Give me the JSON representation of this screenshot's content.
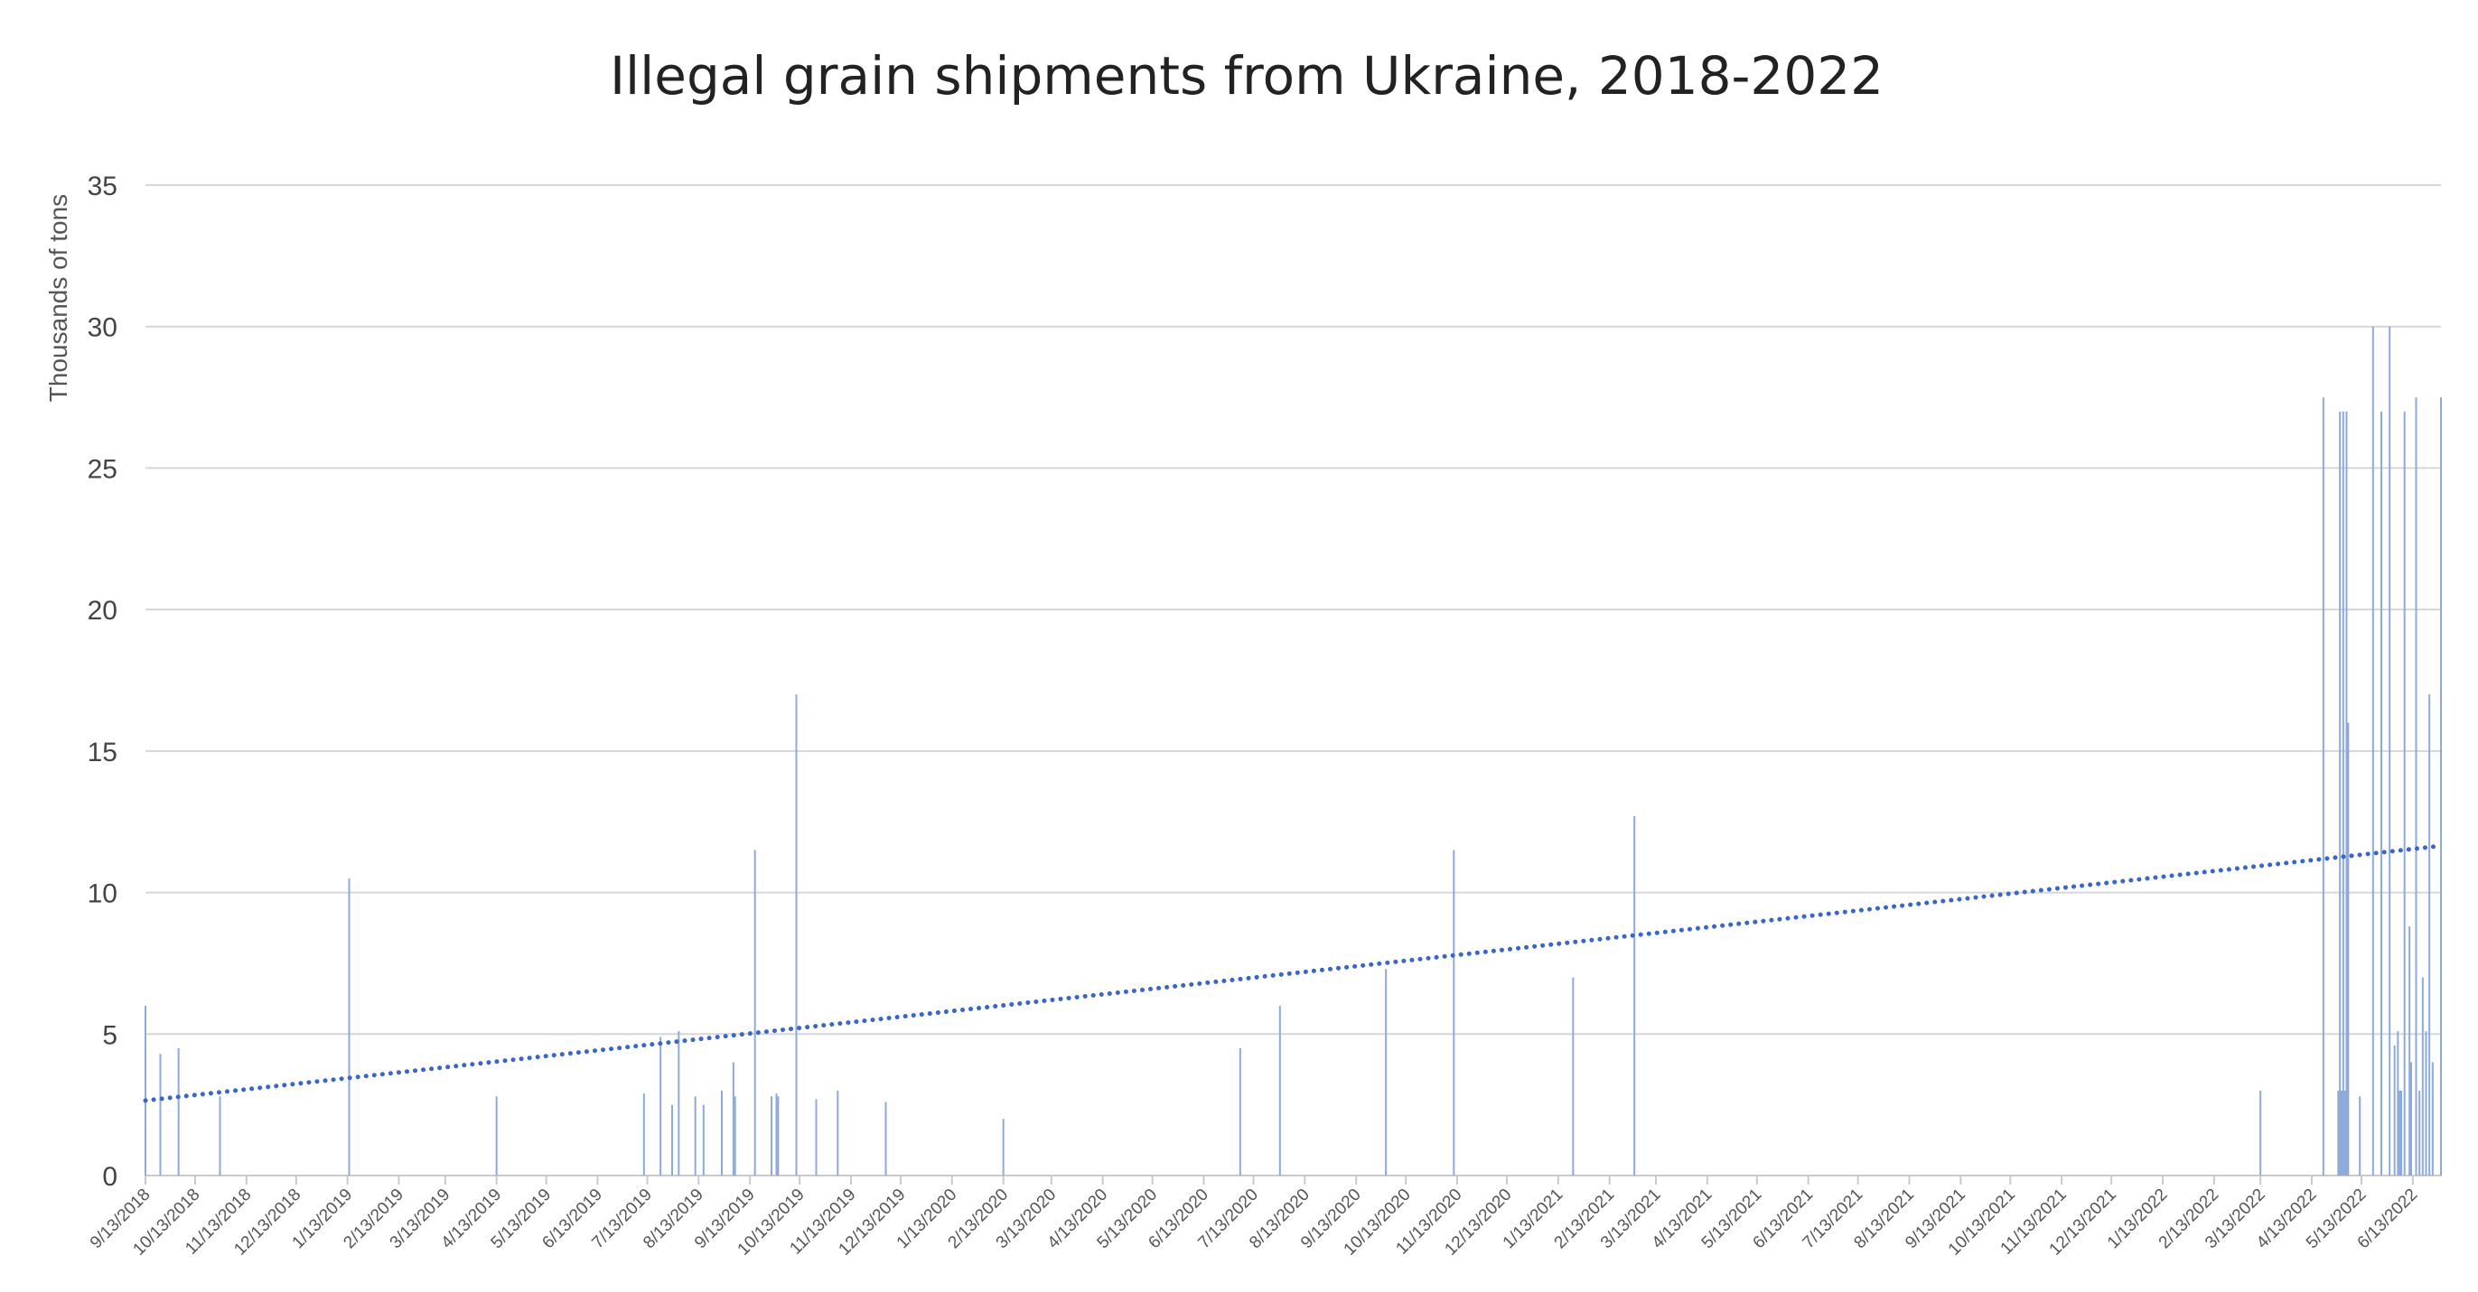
{
  "chart_data": {
    "type": "bar",
    "title": "Illegal grain shipments from Ukraine, 2018-2022",
    "xlabel": "",
    "ylabel": "Thousands of tons",
    "ylim": [
      0,
      35
    ],
    "yticks": [
      0,
      5,
      10,
      15,
      20,
      25,
      30,
      35
    ],
    "grid": true,
    "legend": "none",
    "x_range": [
      "9/13/2018",
      "6/30/2022"
    ],
    "x_tick_labels": [
      "9/13/2018",
      "10/13/2018",
      "11/13/2018",
      "12/13/2018",
      "1/13/2019",
      "2/13/2019",
      "3/13/2019",
      "4/13/2019",
      "5/13/2019",
      "6/13/2019",
      "7/13/2019",
      "8/13/2019",
      "9/13/2019",
      "10/13/2019",
      "11/13/2019",
      "12/13/2019",
      "1/13/2020",
      "2/13/2020",
      "3/13/2020",
      "4/13/2020",
      "5/13/2020",
      "6/13/2020",
      "7/13/2020",
      "8/13/2020",
      "9/13/2020",
      "10/13/2020",
      "11/13/2020",
      "12/13/2020",
      "1/13/2021",
      "2/13/2021",
      "3/13/2021",
      "4/13/2021",
      "5/13/2021",
      "6/13/2021",
      "7/13/2021",
      "8/13/2021",
      "9/13/2021",
      "10/13/2021",
      "11/13/2021",
      "12/13/2021",
      "1/13/2022",
      "2/13/2022",
      "3/13/2022",
      "4/13/2022",
      "5/13/2022",
      "6/13/2022"
    ],
    "series": [
      {
        "values": [
          {
            "x": "2018-09-13",
            "y": 6
          },
          {
            "x": "2018-09-22",
            "y": 4.3
          },
          {
            "x": "2018-10-03",
            "y": 4.5
          },
          {
            "x": "2018-10-28",
            "y": 2.8
          },
          {
            "x": "2019-01-14",
            "y": 10.5
          },
          {
            "x": "2019-04-13",
            "y": 2.8
          },
          {
            "x": "2019-07-11",
            "y": 2.9
          },
          {
            "x": "2019-07-21",
            "y": 4.9
          },
          {
            "x": "2019-07-28",
            "y": 2.5
          },
          {
            "x": "2019-08-01",
            "y": 5.1
          },
          {
            "x": "2019-08-11",
            "y": 2.8
          },
          {
            "x": "2019-08-16",
            "y": 2.5
          },
          {
            "x": "2019-08-27",
            "y": 3.0
          },
          {
            "x": "2019-09-03",
            "y": 4.0
          },
          {
            "x": "2019-09-04",
            "y": 2.8
          },
          {
            "x": "2019-09-16",
            "y": 11.5
          },
          {
            "x": "2019-09-26",
            "y": 2.8
          },
          {
            "x": "2019-09-29",
            "y": 2.9
          },
          {
            "x": "2019-09-30",
            "y": 2.8
          },
          {
            "x": "2019-10-11",
            "y": 17
          },
          {
            "x": "2019-10-23",
            "y": 2.7
          },
          {
            "x": "2019-11-05",
            "y": 3.0
          },
          {
            "x": "2019-12-04",
            "y": 2.6
          },
          {
            "x": "2020-02-13",
            "y": 2.0
          },
          {
            "x": "2020-07-05",
            "y": 4.5
          },
          {
            "x": "2020-07-29",
            "y": 6.0
          },
          {
            "x": "2020-10-01",
            "y": 7.3
          },
          {
            "x": "2020-11-11",
            "y": 11.5
          },
          {
            "x": "2021-01-22",
            "y": 7.0
          },
          {
            "x": "2021-02-28",
            "y": 12.7
          },
          {
            "x": "2022-03-13",
            "y": 3.0
          },
          {
            "x": "2022-04-20",
            "y": 27.5
          },
          {
            "x": "2022-04-29",
            "y": 3.0
          },
          {
            "x": "2022-04-30",
            "y": 27
          },
          {
            "x": "2022-05-01",
            "y": 3.0
          },
          {
            "x": "2022-05-02",
            "y": 27
          },
          {
            "x": "2022-05-03",
            "y": 3.0
          },
          {
            "x": "2022-05-04",
            "y": 27
          },
          {
            "x": "2022-05-05",
            "y": 16
          },
          {
            "x": "2022-05-12",
            "y": 2.8
          },
          {
            "x": "2022-05-20",
            "y": 30
          },
          {
            "x": "2022-05-25",
            "y": 27
          },
          {
            "x": "2022-05-30",
            "y": 30
          },
          {
            "x": "2022-06-02",
            "y": 4.6
          },
          {
            "x": "2022-06-04",
            "y": 5.1
          },
          {
            "x": "2022-06-05",
            "y": 3.0
          },
          {
            "x": "2022-06-06",
            "y": 3.0
          },
          {
            "x": "2022-06-08",
            "y": 27
          },
          {
            "x": "2022-06-11",
            "y": 8.8
          },
          {
            "x": "2022-06-12",
            "y": 4.0
          },
          {
            "x": "2022-06-15",
            "y": 27.5
          },
          {
            "x": "2022-06-17",
            "y": 3.0
          },
          {
            "x": "2022-06-19",
            "y": 7.0
          },
          {
            "x": "2022-06-21",
            "y": 5.1
          },
          {
            "x": "2022-06-23",
            "y": 17
          },
          {
            "x": "2022-06-25",
            "y": 4.0
          },
          {
            "x": "2022-06-30",
            "y": 27.5
          }
        ]
      }
    ],
    "trendline": {
      "style": "dotted",
      "color": "#3a66c4",
      "start": {
        "x": "2018-09-13",
        "y": 2.65
      },
      "end": {
        "x": "2022-06-30",
        "y": 11.65
      }
    },
    "colors": {
      "bars": "#8eaadb",
      "trend": "#3a66c4",
      "grid": "#d4d6da"
    }
  }
}
